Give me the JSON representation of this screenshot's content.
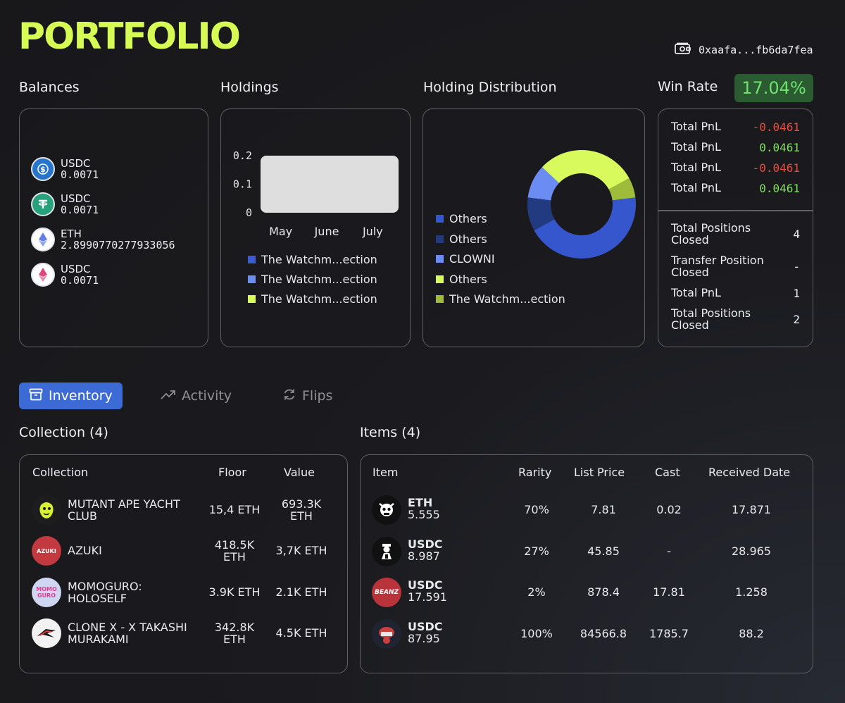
{
  "header": {
    "title": "PORTFOLIO",
    "wallet_address": "0xaafa...fb6da7fea",
    "wallet_icon": "wallet-icon"
  },
  "sections": {
    "balances": "Balances",
    "holdings": "Holdings",
    "distribution": "Holding Distribution",
    "win_rate_label": "Win Rate",
    "win_rate_value": "17.04%"
  },
  "balances": [
    {
      "name": "USDC",
      "value": "0.0071",
      "icon": "usdc-icon",
      "color": "#2775ca"
    },
    {
      "name": "USDC",
      "value": "0.0071",
      "icon": "tether-icon",
      "color": "#26a17b"
    },
    {
      "name": "ETH",
      "value": "2.8990770277933056",
      "icon": "ethereum-icon",
      "color": "#627eea"
    },
    {
      "name": "USDC",
      "value": "0.0071",
      "icon": "ethereum-pink-icon",
      "color": "#e0457b"
    }
  ],
  "chart_data": [
    {
      "type": "bar",
      "categories": [
        "May",
        "June",
        "July"
      ],
      "ylim": [
        0,
        0.2
      ],
      "yticks": [
        "0.2",
        "0.1",
        "0"
      ],
      "series": [
        {
          "name": "The Watchm...ection",
          "color": "#3b5bd1",
          "values": [
            0.2,
            0.2,
            0.2
          ]
        },
        {
          "name": "The Watchm...ection",
          "color": "#6b8df0",
          "values": [
            0,
            0,
            0
          ]
        },
        {
          "name": "The Watchm...ection",
          "color": "#d8fa5c",
          "values": [
            0,
            0,
            0
          ]
        }
      ],
      "bar_color": "#dedede",
      "legend": "bottom"
    },
    {
      "type": "pie",
      "donut": true,
      "legend": "left",
      "slices": [
        {
          "name": "Others",
          "color": "#3556cc",
          "value": 44
        },
        {
          "name": "Others",
          "color": "#223a80",
          "value": 10
        },
        {
          "name": "CLOWNI",
          "color": "#6a8cf3",
          "value": 10
        },
        {
          "name": "Others",
          "color": "#d8fa5c",
          "value": 30
        },
        {
          "name": "The Watchm...ection",
          "color": "#9ebb3a",
          "value": 6
        }
      ]
    }
  ],
  "pnl_top": [
    {
      "label": "Total PnL",
      "value": "-0.0461",
      "sign": "neg"
    },
    {
      "label": "Total PnL",
      "value": "0.0461",
      "sign": "pos"
    },
    {
      "label": "Total PnL",
      "value": "-0.0461",
      "sign": "neg"
    },
    {
      "label": "Total PnL",
      "value": "0.0461",
      "sign": "pos"
    }
  ],
  "pnl_bottom": [
    {
      "label1": "Total Positions",
      "label2": "Closed",
      "value": "4"
    },
    {
      "label1": "Transfer Position",
      "label2": "Closed",
      "value": "-"
    },
    {
      "label1": "Total PnL",
      "label2": "",
      "value": "1"
    },
    {
      "label1": "Total Positions",
      "label2": "Closed",
      "value": "2"
    }
  ],
  "tabs": [
    {
      "label": "Inventory",
      "icon": "archive-box-icon"
    },
    {
      "label": "Activity",
      "icon": "trending-up-icon"
    },
    {
      "label": "Flips",
      "icon": "refresh-icon"
    }
  ],
  "collection": {
    "heading": "Collection (4)",
    "headers": [
      "Collection",
      "Floor",
      "Value"
    ],
    "rows": [
      {
        "name1": "MUTANT APE YACHT",
        "name2": "CLUB",
        "floor1": "15,4 ETH",
        "floor2": "",
        "value1": "693.3K",
        "value2": "ETH",
        "avatar_bg": "#1d1d1d",
        "avatar_text": "",
        "avatar_color": "#d8f032"
      },
      {
        "name1": "AZUKI",
        "name2": "",
        "floor1": "418.5K",
        "floor2": "ETH",
        "value1": "3,7K ETH",
        "value2": "",
        "avatar_bg": "#c23a3f",
        "avatar_text": "AZUKI",
        "avatar_color": "#ffffff"
      },
      {
        "name1": "MOMOGURO:",
        "name2": "HOLOSELF",
        "floor1": "3.9K ETH",
        "floor2": "",
        "value1": "2.1K ETH",
        "value2": "",
        "avatar_bg": "#cfd6f2",
        "avatar_text": "MOMO GURO",
        "avatar_color": "#e23a8e"
      },
      {
        "name1": "CLONE X - X TAKASHI",
        "name2": "MURAKAMI",
        "floor1": "342.8K",
        "floor2": "ETH",
        "value1": "4.5K ETH",
        "value2": "",
        "avatar_bg": "#f2f2f2",
        "avatar_text": "",
        "avatar_color": "#e03a3a"
      }
    ]
  },
  "items": {
    "heading": "Items (4)",
    "headers": [
      "Item",
      "Rarity",
      "List Price",
      "Cast",
      "Received Date"
    ],
    "rows": [
      {
        "symbol": "ETH",
        "amount": "5.555",
        "rarity": "70%",
        "list_price": "7.81",
        "cast": "0.02",
        "date": "17.871",
        "avatar_bg": "#111111",
        "avatar_text": ""
      },
      {
        "symbol": "USDC",
        "amount": "8.987",
        "rarity": "27%",
        "list_price": "45.85",
        "cast": "-",
        "date": "28.965",
        "avatar_bg": "#111111",
        "avatar_text": ""
      },
      {
        "symbol": "USDC",
        "amount": "17.591",
        "rarity": "2%",
        "list_price": "878.4",
        "cast": "17.81",
        "date": "1.258",
        "avatar_bg": "#b8343a",
        "avatar_text": "BEANZ"
      },
      {
        "symbol": "USDC",
        "amount": "87.95",
        "rarity": "100%",
        "list_price": "84566.8",
        "cast": "1785.7",
        "date": "88.2",
        "avatar_bg": "#1f2430",
        "avatar_text": ""
      }
    ]
  }
}
